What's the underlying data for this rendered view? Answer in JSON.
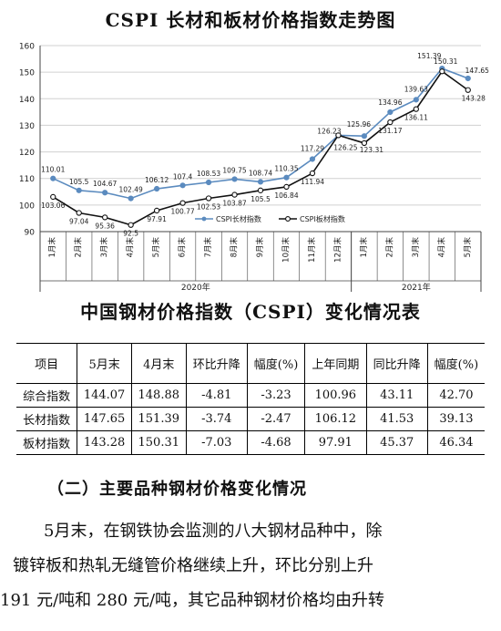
{
  "chart_data": {
    "type": "line",
    "title": "CSPI 长材和板材价格指数走势图",
    "categories": [
      "1月末",
      "2月末",
      "3月末",
      "4月末",
      "5月末",
      "6月末",
      "7月末",
      "8月末",
      "9月末",
      "10月末",
      "11月末",
      "12月末",
      "1月末",
      "2月末",
      "3月末",
      "4月末",
      "5月末"
    ],
    "year_groups": [
      {
        "label": "2020年",
        "start": 0,
        "end": 11
      },
      {
        "label": "2021年",
        "start": 12,
        "end": 16
      }
    ],
    "ylim": [
      90,
      160
    ],
    "yticks": [
      90,
      100,
      110,
      120,
      130,
      140,
      150,
      160
    ],
    "grid": true,
    "legend_position": "bottom-center",
    "series": [
      {
        "name": "CSPI长材指数",
        "color": "#5b8bbf",
        "values": [
          110.01,
          105.5,
          104.67,
          102.49,
          106.12,
          107.4,
          108.53,
          109.75,
          108.74,
          110.35,
          117.29,
          126.23,
          125.96,
          134.96,
          139.63,
          151.39,
          147.65
        ],
        "labels": [
          "110.01",
          "105.5",
          "104.67",
          "102.49",
          "106.12",
          "107.4",
          "108.53",
          "109.75",
          "108.74",
          "110.35",
          "117.29",
          "126.23",
          "125.96",
          "134.96",
          "139.63",
          "151.39",
          "147.65"
        ]
      },
      {
        "name": "CSPI板材指数",
        "color": "#111111",
        "values": [
          103.06,
          97.04,
          95.36,
          92.5,
          97.91,
          100.77,
          102.53,
          103.87,
          105.5,
          106.84,
          111.94,
          126.25,
          123.31,
          131.17,
          136.11,
          150.31,
          143.28
        ],
        "labels": [
          "103.06",
          "97.04",
          "95.36",
          "92.5",
          "97.91",
          "100.77",
          "102.53",
          "103.87",
          "105.5",
          "106.84",
          "111.94",
          "126.25",
          "123.31",
          "131.17",
          "136.11",
          "150.31",
          "143.28"
        ]
      }
    ]
  },
  "table": {
    "title": "中国钢材价格指数（CSPI）变化情况表",
    "headers": [
      "项目",
      "5月末",
      "4月末",
      "环比升降",
      "幅度(%)",
      "上年同期",
      "同比升降",
      "幅度(%)"
    ],
    "rows": [
      [
        "综合指数",
        "144.07",
        "148.88",
        "-4.81",
        "-3.23",
        "100.96",
        "43.11",
        "42.70"
      ],
      [
        "长材指数",
        "147.65",
        "151.39",
        "-3.74",
        "-2.47",
        "106.12",
        "41.53",
        "39.13"
      ],
      [
        "板材指数",
        "143.28",
        "150.31",
        "-7.03",
        "-4.68",
        "97.91",
        "45.37",
        "46.34"
      ]
    ]
  },
  "section": {
    "heading": "（二）主要品种钢材价格变化情况",
    "lines": [
      "5月末，在钢铁协会监测的八大钢材品种中，除",
      "镀锌板和热轧无缝管价格继续上升，环比分别上升",
      "191 元/吨和 280 元/吨，其它品种钢材价格均由升转"
    ]
  }
}
